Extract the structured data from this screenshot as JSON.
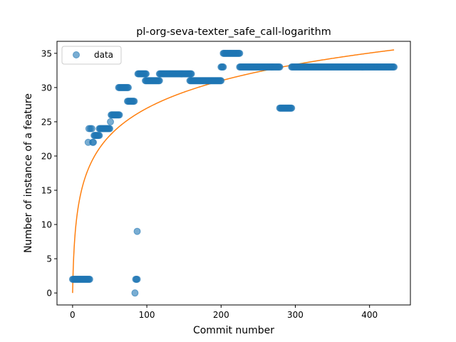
{
  "chart_data": {
    "type": "scatter",
    "title": "pl-org-seva-texter_safe_call-logarithm",
    "xlabel": "Commit number",
    "ylabel": "Number of instance of a feature",
    "xlim": [
      -21,
      455
    ],
    "ylim": [
      -1.75,
      36.75
    ],
    "xticks": [
      0,
      100,
      200,
      300,
      400
    ],
    "yticks": [
      0,
      5,
      10,
      15,
      20,
      25,
      30,
      35
    ],
    "grid": false,
    "legend": {
      "placement": "top-left",
      "entries": [
        "data"
      ]
    },
    "colors": {
      "data": "#1f77b4",
      "fit": "#ff7f0e"
    },
    "series": [
      {
        "name": "data",
        "kind": "scatter",
        "runs": [
          {
            "x_start": 0,
            "x_end": 23,
            "y": 2
          },
          {
            "x": 21,
            "y": 22
          },
          {
            "x": 22,
            "y": 24
          },
          {
            "x": 24,
            "y": 24
          },
          {
            "x": 26,
            "y": 24
          },
          {
            "x": 27,
            "y": 22
          },
          {
            "x": 28,
            "y": 22
          },
          {
            "x_start": 29,
            "x_end": 36,
            "y": 23
          },
          {
            "x_start": 36,
            "x_end": 50,
            "y": 24
          },
          {
            "x": 51,
            "y": 25
          },
          {
            "x_start": 52,
            "x_end": 63,
            "y": 26
          },
          {
            "x_start": 62,
            "x_end": 75,
            "y": 30
          },
          {
            "x_start": 74,
            "x_end": 83,
            "y": 28
          },
          {
            "x": 84,
            "y": 0
          },
          {
            "x_start": 85,
            "x_end": 87,
            "y": 2
          },
          {
            "x": 87,
            "y": 9
          },
          {
            "x_start": 88,
            "x_end": 99,
            "y": 32
          },
          {
            "x_start": 98,
            "x_end": 117,
            "y": 31
          },
          {
            "x_start": 117,
            "x_end": 160,
            "y": 32
          },
          {
            "x_start": 158,
            "x_end": 200,
            "y": 31
          },
          {
            "x_start": 200,
            "x_end": 203,
            "y": 33
          },
          {
            "x_start": 203,
            "x_end": 225,
            "y": 35
          },
          {
            "x_start": 225,
            "x_end": 279,
            "y": 33
          },
          {
            "x_start": 279,
            "x_end": 295,
            "y": 27
          },
          {
            "x_start": 295,
            "x_end": 433,
            "y": 33
          }
        ]
      },
      {
        "kind": "line",
        "x_range": [
          0,
          433
        ],
        "y_range": [
          0,
          35.5
        ],
        "shape": "logarithmic"
      }
    ]
  }
}
